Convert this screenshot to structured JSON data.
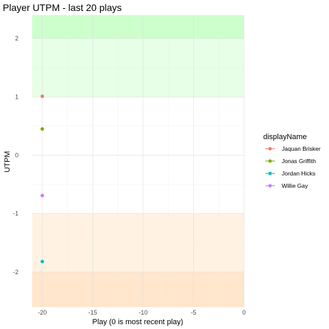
{
  "chart_data": {
    "type": "scatter",
    "title": "Player UTPM - last 20 plays",
    "xlabel": "Play (0 is most recent play)",
    "ylabel": "UTPM",
    "xlim": [
      -21,
      0
    ],
    "ylim": [
      -2.6,
      2.4
    ],
    "x_ticks": [
      -20,
      -15,
      -10,
      -5,
      0
    ],
    "y_ticks": [
      -2,
      -1,
      0,
      1,
      2
    ],
    "x_tick_labels": [
      "-20",
      "-15",
      "-10",
      "-5",
      "0"
    ],
    "y_tick_labels": [
      "-2",
      "-1",
      "0",
      "1",
      "2"
    ],
    "grid": true,
    "legend": {
      "title": "displayName",
      "position": "right"
    },
    "bands": [
      {
        "y_from": 2,
        "y_to": 2.4,
        "color": "#ccffcc"
      },
      {
        "y_from": 1,
        "y_to": 2,
        "color": "#e6ffe6"
      },
      {
        "y_from": -2,
        "y_to": -1,
        "color": "#fff2e3"
      },
      {
        "y_from": -2.6,
        "y_to": -2,
        "color": "#ffe6cc"
      }
    ],
    "series": [
      {
        "name": "Jaquan Brisker",
        "color": "#F8766D",
        "x": [
          -20
        ],
        "y": [
          1.01
        ]
      },
      {
        "name": "Jonas Griffith",
        "color": "#7CAE00",
        "x": [
          -20
        ],
        "y": [
          0.45
        ]
      },
      {
        "name": "Jordan Hicks",
        "color": "#00BFC4",
        "x": [
          -20
        ],
        "y": [
          -1.82
        ]
      },
      {
        "name": "Willie Gay",
        "color": "#C77CFF",
        "x": [
          -20
        ],
        "y": [
          -0.69
        ]
      }
    ]
  }
}
